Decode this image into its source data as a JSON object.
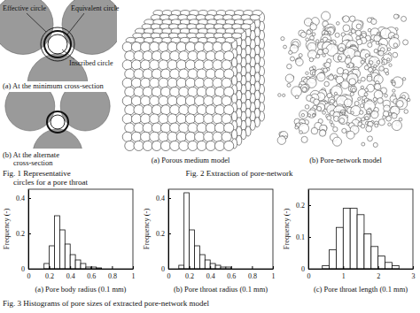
{
  "fig1": {
    "labels": {
      "effective": "Effective circle",
      "equivalent": "Equivalent circle",
      "inscribed": "Inscribed circle"
    },
    "panel_a_caption": "(a) At the minimum cross-section",
    "panel_b_caption": [
      "(b) At the alternate",
      "cross-section"
    ],
    "caption": [
      "Fig. 1  Representative",
      "circles for a pore throat"
    ]
  },
  "fig2": {
    "panel_a_caption": "(a) Porous medium model",
    "panel_b_caption": "(b) Pore-network model",
    "caption": "Fig. 2  Extraction of pore-network"
  },
  "chart_data": [
    {
      "type": "histogram",
      "x_label": "(a) Pore body radius (0.1 mm)",
      "y_label": "Frequency (-)",
      "bins": [
        0.15,
        0.2,
        0.25,
        0.3,
        0.35,
        0.4,
        0.45,
        0.5,
        0.55,
        0.6,
        0.65,
        0.7
      ],
      "counts": [
        0.03,
        0.13,
        0.3,
        0.22,
        0.14,
        0.08,
        0.05,
        0.03,
        0.01,
        0.01,
        0.005
      ],
      "xlim": [
        0,
        1
      ],
      "xticks": [
        0,
        0.2,
        0.4,
        0.6,
        0.8,
        1
      ],
      "ylim": [
        0,
        0.45
      ],
      "yticks": [
        0,
        0.2,
        0.4
      ],
      "color": "#ffffff"
    },
    {
      "type": "histogram",
      "x_label": "(b) Pore throat radius (0.1 mm)",
      "y_label": "Frequency (-)",
      "bins": [
        0.1,
        0.15,
        0.2,
        0.25,
        0.3,
        0.35,
        0.4,
        0.45,
        0.5,
        0.55,
        0.6
      ],
      "counts": [
        0.02,
        0.43,
        0.22,
        0.13,
        0.08,
        0.05,
        0.03,
        0.02,
        0.01,
        0.01
      ],
      "xlim": [
        0,
        1
      ],
      "xticks": [
        0,
        0.2,
        0.4,
        0.6,
        0.8,
        1
      ],
      "ylim": [
        0,
        0.45
      ],
      "yticks": [
        0,
        0.2,
        0.4
      ],
      "color": "#ffffff"
    },
    {
      "type": "histogram",
      "x_label": "(c) Pore throat length (0.1 mm)",
      "y_label": "Frequency (-)",
      "bins": [
        0.4,
        0.6,
        0.8,
        1.0,
        1.2,
        1.4,
        1.6,
        1.8,
        2.0,
        2.2,
        2.4,
        2.6
      ],
      "counts": [
        0.01,
        0.06,
        0.13,
        0.19,
        0.19,
        0.17,
        0.11,
        0.07,
        0.04,
        0.02,
        0.01
      ],
      "xlim": [
        0,
        3
      ],
      "xticks": [
        0,
        1,
        2,
        3
      ],
      "ylim": [
        0,
        0.25
      ],
      "yticks": [
        0,
        0.1,
        0.2
      ],
      "color": "#ffffff"
    }
  ],
  "fig3_caption": "Fig. 3  Histograms of pore sizes of extracted pore-network model"
}
